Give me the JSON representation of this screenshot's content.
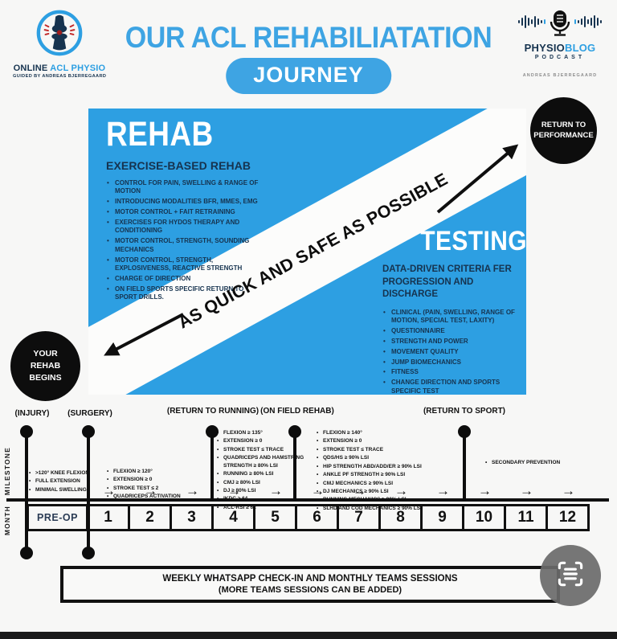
{
  "colors": {
    "accent_blue": "#2d9fe2",
    "navy": "#16334f",
    "badge_black": "#0d0d0d"
  },
  "icons": {
    "logo_left": "knee-joint-icon",
    "logo_right": "microphone-icon",
    "bottom_right": "scan-document-icon",
    "timeline": "right-arrow-icon"
  },
  "header": {
    "logo_left": {
      "brand_dark": "ONLINE",
      "brand_blue": " ACL PHYSIO",
      "tagline": "GUIDED BY ANDREAS BJERREGAARD"
    },
    "title": "OUR ACL REHABILIATATION",
    "title_pill": "JOURNEY",
    "logo_right": {
      "brand_dark": "PHYSIO",
      "brand_blue": "BLOG",
      "sub": "PODCAST",
      "author": "ANDREAS BJERREGAARD"
    }
  },
  "badges": {
    "top_right": "RETURN TO PERFORMANCE",
    "mid_left": "YOUR REHAB BEGINS"
  },
  "rehab": {
    "heading": "REHAB",
    "subheading": "EXERCISE-BASED REHAB",
    "bullets": [
      "CONTROL FOR PAIN, SWELLING & RANGE OF MOTION",
      "INTRODUCING MODALITIES BFR, MMES, EMG",
      "MOTOR CONTROL + FAIT RETRAINING",
      "EXERCISES FOR HYDOS THERAPY AND CONDITIONING",
      "MOTOR CONTROL, STRENGTH, SOUNDING MECHANICS",
      "MOTOR CONTROL, STRENGTH, EXPLOSIVENESS, REACTIVE STRENGTH",
      "CHARGE OF DIRECTION",
      "ON FIELD SPORTS SPECIFIC RETURN TO SPORT DRILLS."
    ]
  },
  "testing": {
    "heading": "TESTING",
    "subheading": "DATA-DRIVEN CRITERIA FER PROGRESSION AND DISCHARGE",
    "bullets": [
      "CLINICAL (PAIN, SWELLING, RANGE OF MOTION, SPECIAL TEST, LAXITY)",
      "QUESTIONNAIRE",
      "STRENGTH AND POWER",
      "MOVEMENT QUALITY",
      "JUMP BIOMECHANICS",
      "FITNESS",
      "CHANGE DIRECTION AND SPORTS SPECIFIC TEST"
    ]
  },
  "band_text": "AS QUICK AND SAFE AS POSSIBLE",
  "timeline": {
    "row_labels": {
      "milestone": "MILESTONE",
      "month": "MONTH"
    },
    "events": [
      {
        "label": "(INJURY)"
      },
      {
        "label": "(SURGERY)"
      },
      {
        "label": "(RETURN TO RUNNING)"
      },
      {
        "label": "(ON FIELD REHAB)"
      },
      {
        "label": "(RETURN TO SPORT)"
      }
    ],
    "milestones": [
      {
        "items": [
          ">120° KNEE FLEXION",
          "FULL EXTENSION",
          "MINIMAL SWELLING"
        ]
      },
      {
        "items": [
          "FLEXION ≥ 120°",
          "EXTENSION ≥ 0",
          "STROKE TEST ≤ 2",
          "QUADRICEPS ACTIVATION"
        ]
      },
      {
        "items": [
          "FLEXION ≥ 135°",
          "EXTENSION ≥ 0",
          "STROKE TEST ≤ TRACE",
          "QUADRICEPS AND HAMSTRING STRENGTH ≥ 80% LSI",
          "RUNNING ≥ 80% LSI",
          "CMJ ≥ 80% LSI",
          "DJ ≥ 80% LSI",
          "IKDC ≥ 64",
          "ACL-RSI ≥ 62"
        ]
      },
      {
        "items": [
          "FLEXION ≥ 140°",
          "EXTENSION ≥ 0",
          "STROKE TEST ≤ TRACE",
          "QDS/HS ≥ 90% LSI",
          "HIP STRENGTH ABD/ADD/ER ≥ 90% LSI",
          "ANKLE PF STRENGTH ≥ 90% LSI",
          "CMJ MECHANICS ≥ 90% LSI",
          "DJ MECHANICS ≥ 90% LSI",
          "RUNNING MECHANICS ≥ 90% LSI",
          "SLHD AND COD MECHANICS ≥ 90% LSI"
        ]
      },
      {
        "items": [
          "SECONDARY PREVENTION"
        ]
      }
    ],
    "months": [
      "PRE-OP",
      "1",
      "2",
      "3",
      "4",
      "5",
      "6",
      "7",
      "8",
      "9",
      "10",
      "11",
      "12"
    ]
  },
  "footer": {
    "line1": "WEEKLY WHATSAPP CHECK-IN AND MONTHLY TEAMS SESSIONS",
    "line2": "(MORE TEAMS SESSIONS CAN BE ADDED)"
  }
}
